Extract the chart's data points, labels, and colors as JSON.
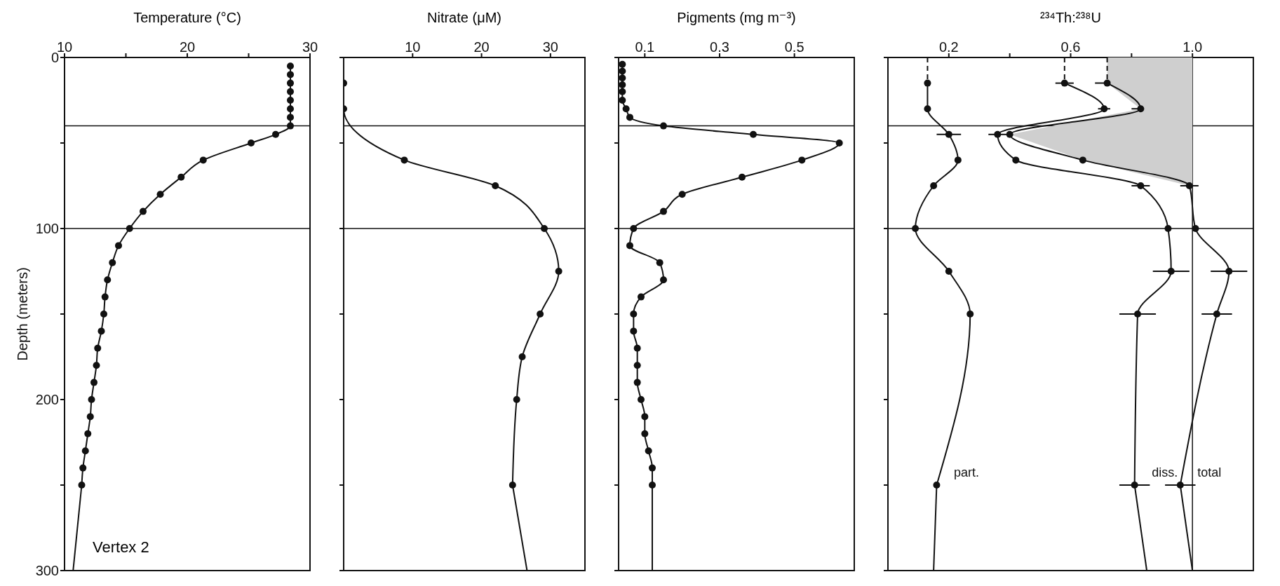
{
  "chart_data": [
    {
      "type": "line",
      "title": "Temperature (°C)",
      "ylabel": "Depth (meters)",
      "xlim": [
        10,
        30
      ],
      "xticks": [
        10,
        {
          "value": 15,
          "label": null
        },
        20,
        {
          "value": 25,
          "label": null
        },
        30
      ],
      "ylim": [
        300,
        0
      ],
      "yticks": [
        0,
        {
          "value": 50,
          "label": null
        },
        100,
        {
          "value": 150,
          "label": null
        },
        200,
        {
          "value": 250,
          "label": null
        },
        300
      ],
      "marker": "circle",
      "annotations": [
        "Vertex 2"
      ],
      "ref_lines": [
        {
          "axis": "y",
          "value": 40
        },
        {
          "axis": "y",
          "value": 100
        }
      ],
      "series": [
        {
          "color": "#111111",
          "x": [
            28.4,
            28.4,
            28.4,
            28.4,
            28.4,
            28.4,
            28.4,
            28.4,
            27.2,
            25.2,
            21.3,
            19.5,
            17.8,
            16.4,
            15.3,
            14.4,
            13.9,
            13.5,
            13.3,
            13.2,
            13.0,
            12.7,
            12.6,
            12.4,
            12.2,
            12.1,
            11.9,
            11.7,
            11.5,
            11.4
          ],
          "values": [
            5,
            10,
            15,
            20,
            25,
            30,
            35,
            40,
            45,
            50,
            60,
            70,
            80,
            90,
            100,
            110,
            120,
            130,
            140,
            150,
            160,
            170,
            180,
            190,
            200,
            210,
            220,
            230,
            240,
            250
          ]
        },
        {
          "color": "#111111",
          "marker": "none",
          "x": [
            11.4,
            10.7
          ],
          "values": [
            250,
            300
          ]
        }
      ]
    },
    {
      "type": "line",
      "title": "Nitrate (μM)",
      "xlim": [
        0,
        35
      ],
      "xticks": [
        10,
        20,
        30
      ],
      "ylim": [
        300,
        0
      ],
      "yticks": [
        0,
        50,
        100,
        150,
        200,
        250,
        300
      ],
      "tick_labels": "x",
      "marker": "circle",
      "ref_lines": [
        {
          "axis": "y",
          "value": 40
        },
        {
          "axis": "y",
          "value": 100
        }
      ],
      "series": [
        {
          "color": "#111111",
          "x": [
            0,
            0,
            8.8,
            22,
            29.1,
            31.2,
            28.5,
            25.9,
            25.1,
            24.5
          ],
          "values": [
            15,
            30,
            60,
            75,
            100,
            125,
            150,
            175,
            200,
            250
          ]
        },
        {
          "color": "#111111",
          "marker": "none",
          "x": [
            24.5,
            26.6
          ],
          "values": [
            250,
            300
          ]
        }
      ]
    },
    {
      "type": "line",
      "title": "Pigments (mg m⁻³)",
      "xlim": [
        0.03,
        0.66
      ],
      "xticks": [
        0.1,
        0.3,
        0.5
      ],
      "ylim": [
        300,
        0
      ],
      "yticks": [
        0,
        50,
        100,
        150,
        200,
        250,
        300
      ],
      "tick_labels": "x",
      "marker": "circle",
      "ref_lines": [
        {
          "axis": "y",
          "value": 40
        },
        {
          "axis": "y",
          "value": 100
        }
      ],
      "series": [
        {
          "color": "#111111",
          "x": [
            0.04,
            0.04,
            0.04,
            0.04,
            0.04,
            0.04,
            0.05,
            0.06,
            0.15,
            0.39,
            0.62,
            0.52,
            0.36,
            0.2,
            0.15,
            0.07,
            0.06,
            0.14,
            0.15,
            0.09,
            0.07,
            0.07,
            0.08,
            0.08,
            0.08,
            0.09,
            0.1,
            0.1,
            0.11,
            0.12,
            0.12
          ],
          "values": [
            4,
            8,
            12,
            16,
            20,
            25,
            30,
            35,
            40,
            45,
            50,
            60,
            70,
            80,
            90,
            100,
            110,
            120,
            130,
            140,
            150,
            160,
            170,
            180,
            190,
            200,
            210,
            220,
            230,
            240,
            250
          ]
        },
        {
          "color": "#111111",
          "marker": "none",
          "x": [
            0.12,
            0.12
          ],
          "values": [
            250,
            300
          ]
        }
      ]
    },
    {
      "type": "line",
      "title": "²³⁴Th:²³⁸U",
      "xlim": [
        0,
        1.2
      ],
      "xticks": [
        0.2,
        {
          "value": 0.4,
          "label": null
        },
        0.6,
        {
          "value": 0.8,
          "label": null
        },
        {
          "value": 1,
          "label": "1.0"
        }
      ],
      "ylim": [
        300,
        0
      ],
      "yticks": [
        0,
        50,
        100,
        150,
        200,
        250,
        300
      ],
      "tick_labels": "x",
      "marker": "circle",
      "ref_lines": [
        {
          "axis": "y",
          "value": 40
        },
        {
          "axis": "y",
          "value": 100
        },
        {
          "axis": "x",
          "value": 1
        }
      ],
      "series": [
        {
          "type": "area",
          "color": "#cfcfcf",
          "marker": "none",
          "x": [
            0.72,
            0.72,
            0.83,
            0.4,
            0.64,
            0.99,
            1.0,
            1.0
          ],
          "values": [
            0,
            15,
            30,
            45,
            60,
            75,
            75,
            0
          ]
        },
        {
          "name": "part.",
          "color": "#111111",
          "x": [
            0.13,
            0.13,
            0.2,
            0.23,
            0.15,
            0.09,
            0.2,
            0.27,
            0.16
          ],
          "values": [
            15,
            30,
            45,
            60,
            75,
            100,
            125,
            150,
            250
          ],
          "xerrors": [
            null,
            null,
            0.04,
            null,
            null,
            null,
            null,
            null,
            null
          ]
        },
        {
          "name": "diss.",
          "color": "#111111",
          "x": [
            0.58,
            0.71,
            0.36,
            0.42,
            0.83,
            0.92,
            0.93,
            0.82,
            0.81
          ],
          "values": [
            15,
            30,
            45,
            60,
            75,
            100,
            125,
            150,
            250
          ],
          "xerrors": [
            0.03,
            0.02,
            0.03,
            null,
            0.03,
            null,
            0.06,
            0.06,
            0.05
          ]
        },
        {
          "name": "total",
          "color": "#111111",
          "x": [
            0.72,
            0.83,
            0.4,
            0.64,
            0.99,
            1.01,
            1.12,
            1.08,
            0.96
          ],
          "values": [
            15,
            30,
            45,
            60,
            75,
            100,
            125,
            150,
            250
          ],
          "xerrors": [
            0.04,
            0.03,
            null,
            null,
            0.03,
            null,
            0.06,
            0.05,
            0.05
          ]
        },
        {
          "color": "#111111",
          "marker": "none",
          "x": [
            0.16,
            0.15
          ],
          "values": [
            250,
            300
          ]
        },
        {
          "color": "#111111",
          "marker": "none",
          "x": [
            0.81,
            0.85
          ],
          "values": [
            250,
            300
          ]
        },
        {
          "color": "#111111",
          "marker": "none",
          "x": [
            0.96,
            1.0
          ],
          "values": [
            250,
            300
          ]
        },
        {
          "color": "#111111",
          "marker": "none",
          "line_style": "dashed",
          "x": [
            0.13,
            0.13
          ],
          "values": [
            0,
            15
          ]
        },
        {
          "color": "#111111",
          "marker": "none",
          "line_style": "dashed",
          "x": [
            0.58,
            0.58
          ],
          "values": [
            0,
            15
          ]
        },
        {
          "color": "#111111",
          "marker": "none",
          "line_style": "dashed",
          "x": [
            0.72,
            0.72
          ],
          "values": [
            0,
            15
          ]
        }
      ]
    }
  ]
}
